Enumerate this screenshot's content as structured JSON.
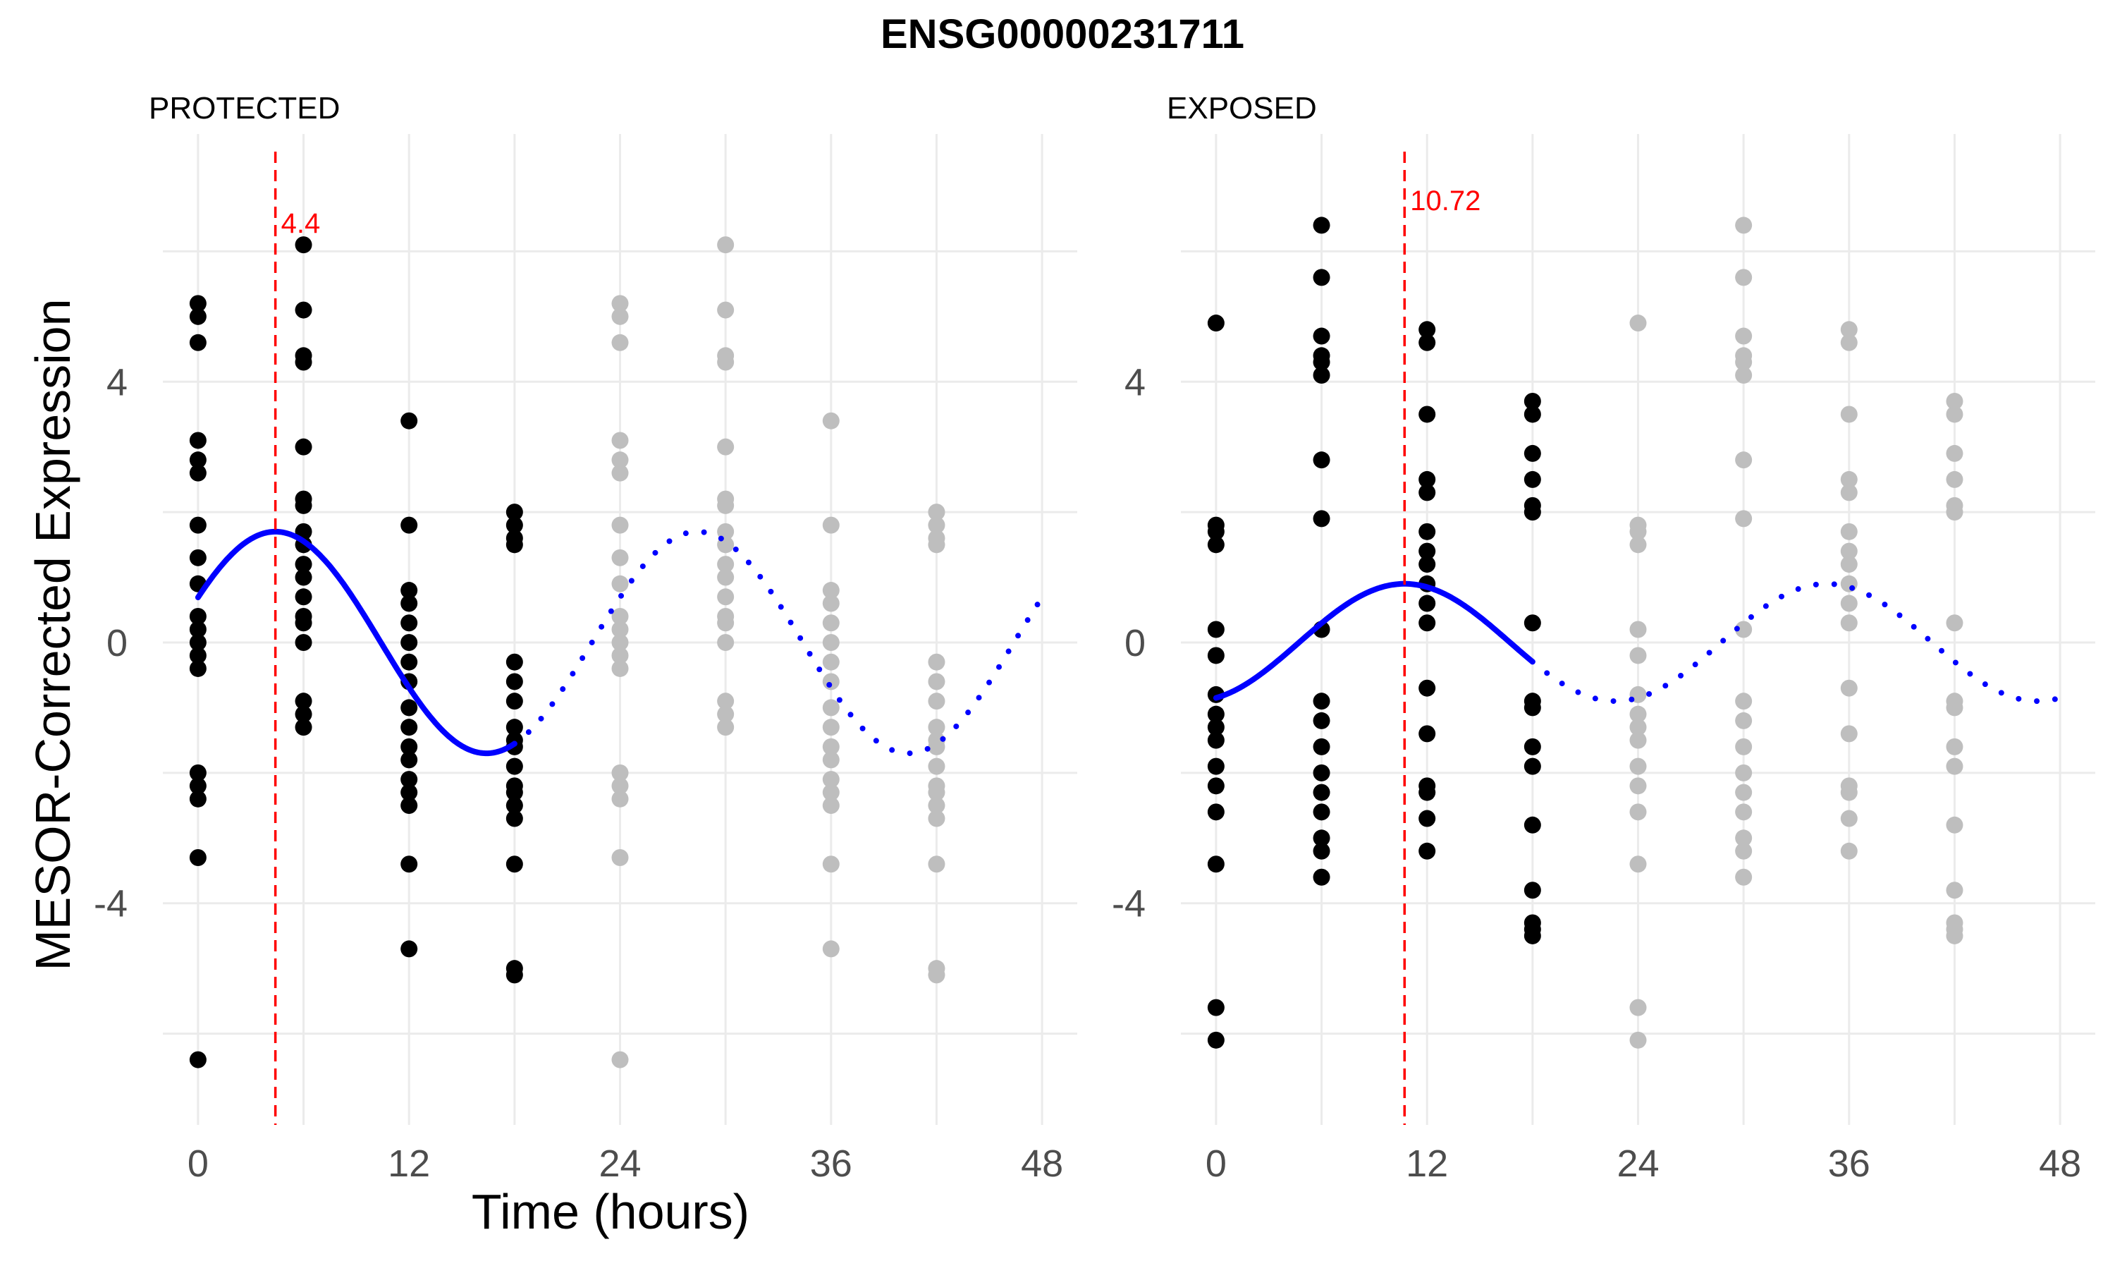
{
  "chart_data": {
    "type": "scatter",
    "title": "ENSG00000231711",
    "xlabel": "Time (hours)",
    "ylabel": "MESOR-Corrected Expression",
    "xlim": [
      -2,
      50
    ],
    "ylim": [
      -7.4,
      7.8
    ],
    "x_ticks": [
      0,
      12,
      24,
      36,
      48
    ],
    "y_ticks": [
      -4,
      0,
      4
    ],
    "grid": true,
    "colors": {
      "observed": "#000000",
      "replicated": "#bebebe",
      "fit": "#0000ff",
      "peak": "#ff0000"
    },
    "panels": [
      {
        "name": "PROTECTED",
        "peak_time": 4.4,
        "peak_label": "4.4",
        "fit": {
          "mesor": 0,
          "amplitude": 1.7,
          "acrophase": 4.4,
          "period": 24
        },
        "observed": [
          {
            "x": 0,
            "y": [
              5.2,
              5.0,
              4.6,
              3.1,
              2.8,
              2.6,
              1.8,
              1.3,
              0.9,
              0.4,
              0.2,
              0.0,
              -0.2,
              -0.4,
              -2.0,
              -2.2,
              -2.4,
              -3.3,
              -6.4
            ]
          },
          {
            "x": 6,
            "y": [
              6.1,
              5.1,
              4.4,
              4.3,
              3.0,
              2.2,
              2.1,
              1.7,
              1.5,
              1.2,
              1.0,
              0.7,
              0.4,
              0.3,
              0.0,
              -0.9,
              -1.1,
              -1.3
            ]
          },
          {
            "x": 12,
            "y": [
              3.4,
              1.8,
              0.8,
              0.6,
              0.3,
              0.0,
              -0.3,
              -0.6,
              -1.0,
              -1.3,
              -1.6,
              -1.8,
              -2.1,
              -2.3,
              -2.5,
              -3.4,
              -4.7
            ]
          },
          {
            "x": 18,
            "y": [
              2.0,
              1.8,
              1.6,
              1.5,
              -0.3,
              -0.6,
              -0.9,
              -1.3,
              -1.5,
              -1.6,
              -1.9,
              -2.2,
              -2.3,
              -2.5,
              -2.7,
              -3.4,
              -5.0,
              -5.1
            ]
          }
        ]
      },
      {
        "name": "EXPOSED",
        "peak_time": 10.72,
        "peak_label": "10.72",
        "fit": {
          "mesor": 0,
          "amplitude": 0.9,
          "acrophase": 10.72,
          "period": 24
        },
        "observed": [
          {
            "x": 0,
            "y": [
              4.9,
              1.8,
              1.7,
              1.5,
              0.2,
              -0.2,
              -0.8,
              -1.1,
              -1.3,
              -1.5,
              -1.9,
              -2.2,
              -2.6,
              -3.4,
              -5.6,
              -6.1
            ]
          },
          {
            "x": 6,
            "y": [
              6.4,
              5.6,
              4.7,
              4.4,
              4.3,
              4.1,
              2.8,
              1.9,
              0.2,
              -0.9,
              -1.2,
              -1.6,
              -2.0,
              -2.3,
              -2.6,
              -3.0,
              -3.2,
              -3.6
            ]
          },
          {
            "x": 12,
            "y": [
              4.8,
              4.6,
              3.5,
              2.5,
              2.3,
              1.7,
              1.4,
              1.2,
              0.9,
              0.6,
              0.3,
              -0.7,
              -1.4,
              -2.2,
              -2.3,
              -2.7,
              -3.2
            ]
          },
          {
            "x": 18,
            "y": [
              3.7,
              3.5,
              2.9,
              2.5,
              2.1,
              2.0,
              0.3,
              -0.9,
              -1.0,
              -1.6,
              -1.9,
              -2.8,
              -3.8,
              -4.3,
              -4.4,
              -4.5
            ]
          }
        ]
      }
    ]
  }
}
